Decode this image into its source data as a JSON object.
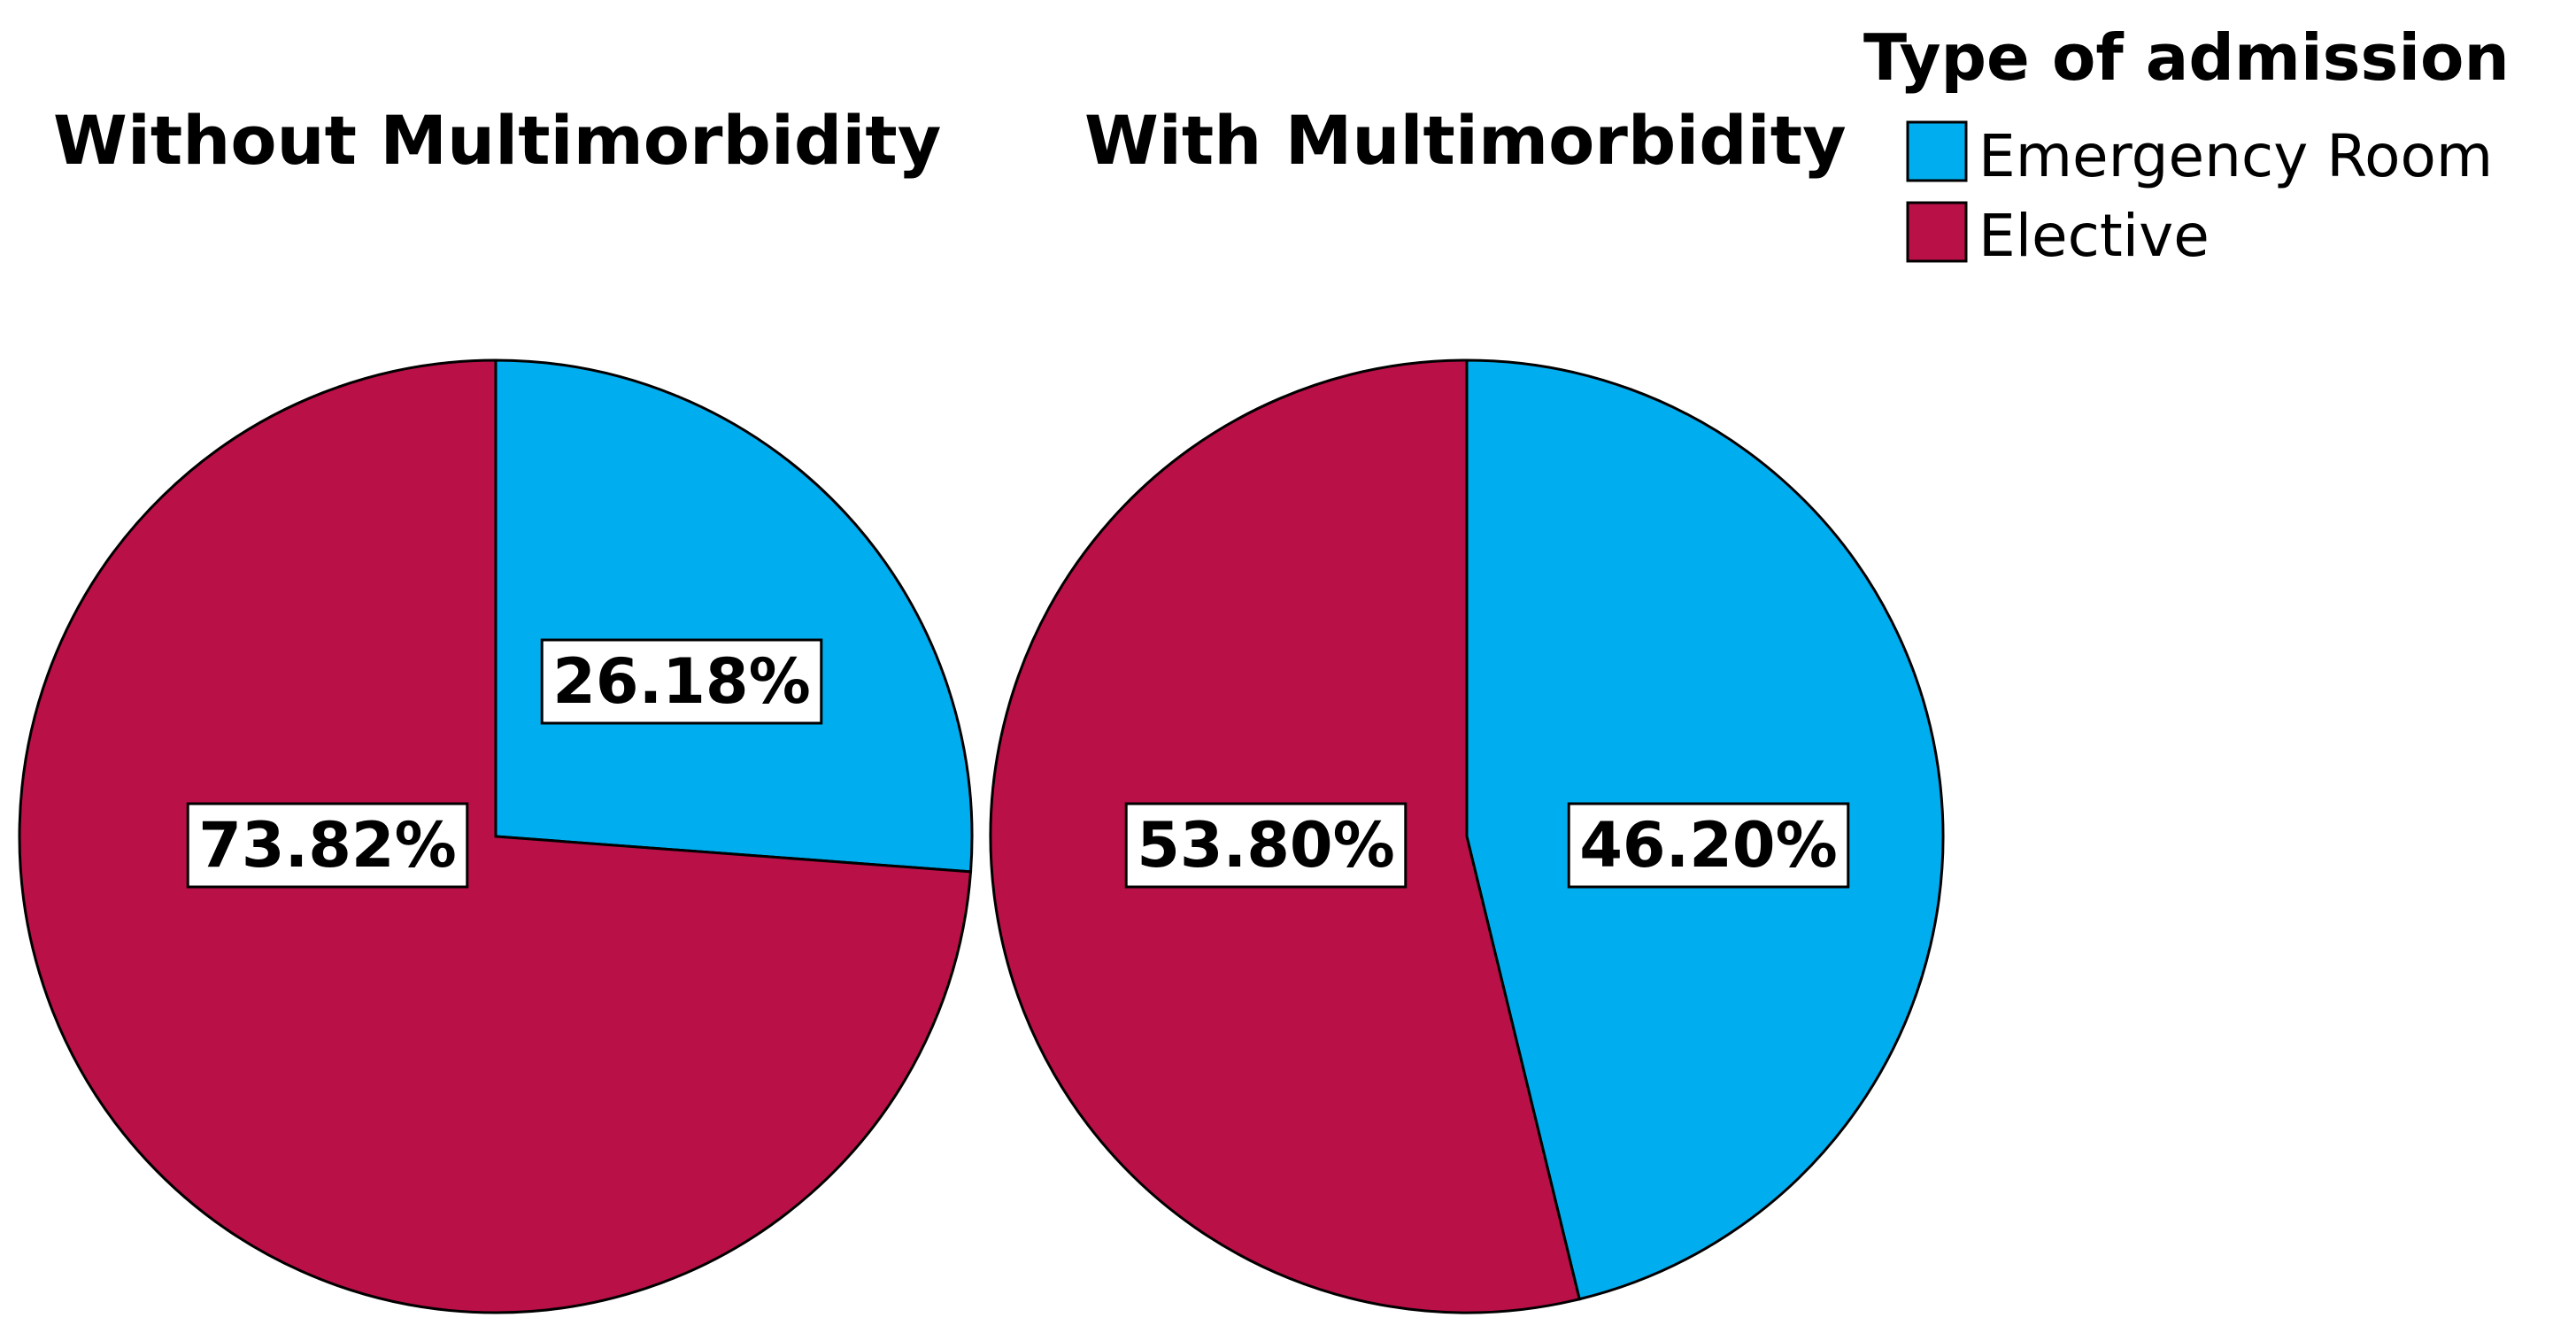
{
  "chart_data": [
    {
      "type": "pie",
      "title": "Without Multimorbidity",
      "categories": [
        "Emergency Room",
        "Elective"
      ],
      "values": [
        26.18,
        73.82
      ],
      "labels": [
        "26.18%",
        "73.82%"
      ]
    },
    {
      "type": "pie",
      "title": "With Multimorbidity",
      "categories": [
        "Emergency Room",
        "Elective"
      ],
      "values": [
        46.2,
        53.8
      ],
      "labels": [
        "46.20%",
        "53.80%"
      ]
    }
  ],
  "legend": {
    "title": "Type of admission",
    "placement": "top-right",
    "items": [
      {
        "label": "Emergency Room",
        "color": "#00AEEF"
      },
      {
        "label": "Elective",
        "color": "#BA1048"
      }
    ]
  },
  "colors": {
    "Emergency Room": "#00AEEF",
    "Elective": "#BA1048",
    "outline": "#000000"
  }
}
